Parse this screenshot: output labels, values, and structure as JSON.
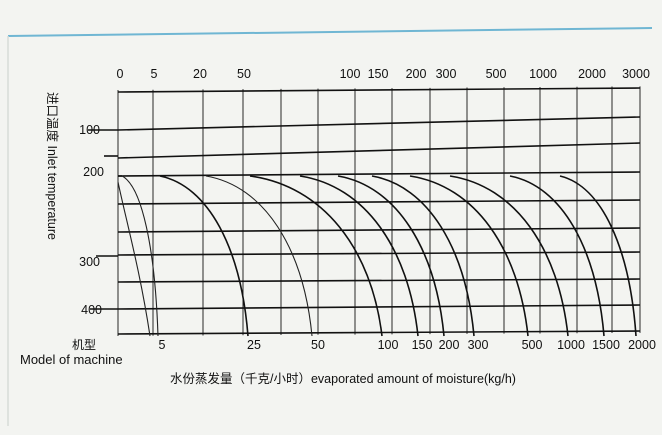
{
  "chart_data": {
    "type": "line",
    "ylabel": "进口温度 Inlet temperature",
    "xlabel": "水份蒸发量（千克/小时）evaporated amount of moisture(kg/h)",
    "model_label_cn": "机型",
    "model_label_en": "Model of machine",
    "y_ticks": [
      "100",
      "200",
      "300",
      "400"
    ],
    "top_ticks": [
      "0",
      "5",
      "20",
      "50",
      "100",
      "150",
      "200",
      "300",
      "500",
      "1000",
      "2000",
      "3000"
    ],
    "bottom_ticks": [
      "5",
      "25",
      "50",
      "100",
      "150",
      "200",
      "300",
      "500",
      "1000",
      "1500",
      "2000"
    ],
    "series": [
      {
        "model": "5",
        "evaporation_top": 5
      },
      {
        "model": "25",
        "evaporation_top": 20
      },
      {
        "model": "50",
        "evaporation_top": 50
      },
      {
        "model": "100",
        "evaporation_top": 100
      },
      {
        "model": "150",
        "evaporation_top": 150
      },
      {
        "model": "200",
        "evaporation_top": 200
      },
      {
        "model": "300",
        "evaporation_top": 300
      },
      {
        "model": "500",
        "evaporation_top": 500
      },
      {
        "model": "1000",
        "evaporation_top": 1000
      },
      {
        "model": "1500",
        "evaporation_top": 2000
      },
      {
        "model": "2000",
        "evaporation_top": 3000
      }
    ],
    "grid": true
  }
}
